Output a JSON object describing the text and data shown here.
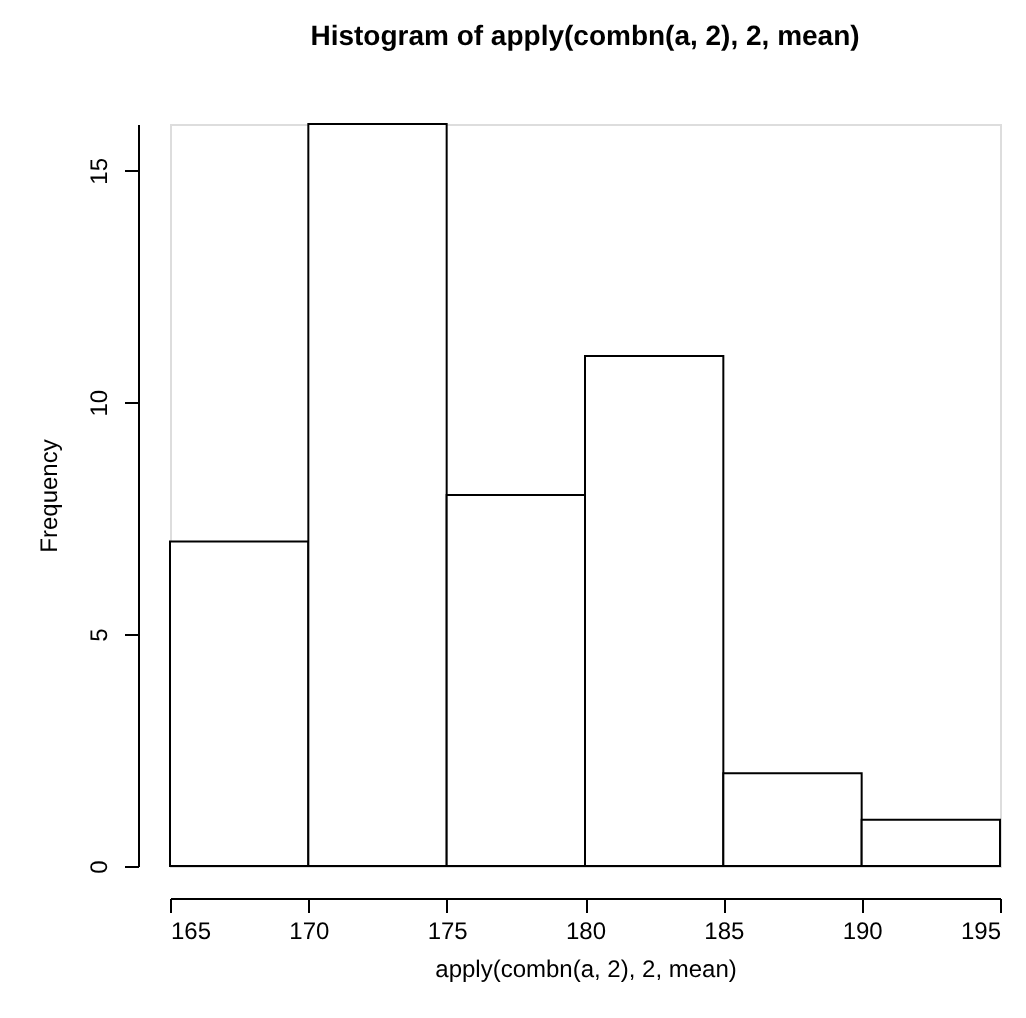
{
  "chart_data": {
    "type": "histogram",
    "title": "Histogram of apply(combn(a, 2), 2, mean)",
    "xlabel": "apply(combn(a, 2), 2, mean)",
    "ylabel": "Frequency",
    "bins": [
      165,
      170,
      175,
      180,
      185,
      190,
      195
    ],
    "values": [
      7,
      16,
      8,
      11,
      2,
      1
    ],
    "xlim": [
      165,
      195
    ],
    "xticks": [
      165,
      170,
      175,
      180,
      185,
      190,
      195
    ],
    "ylim": [
      0,
      16
    ],
    "yticks": [
      0,
      5,
      10,
      15
    ],
    "grid": false
  }
}
